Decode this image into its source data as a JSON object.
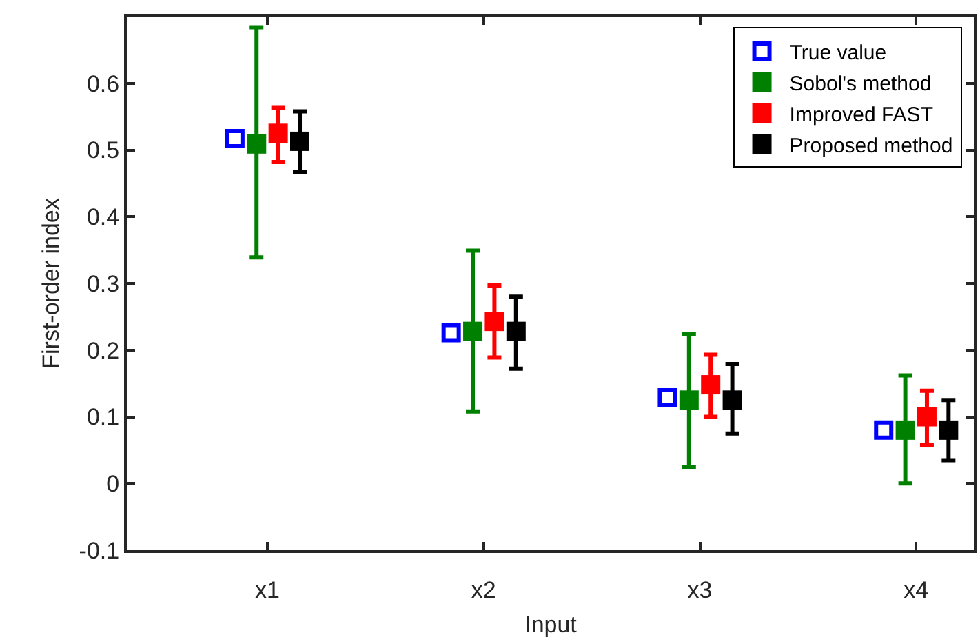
{
  "chart_data": {
    "type": "scatter",
    "xlabel": "Input",
    "ylabel": "First-order index",
    "categories": [
      "x1",
      "x2",
      "x3",
      "x4"
    ],
    "ylim": [
      -0.1,
      0.7
    ],
    "yticks": [
      -0.1,
      0,
      0.1,
      0.2,
      0.3,
      0.4,
      0.5,
      0.6
    ],
    "grid": false,
    "legend": "top right",
    "marker": "square",
    "series": [
      {
        "name": "True value",
        "color": "#0000ff",
        "values": [
          0.517,
          0.226,
          0.129,
          0.08
        ]
      },
      {
        "name": "Sobol's method",
        "color": "#008000",
        "values": [
          0.509,
          0.228,
          0.125,
          0.08
        ],
        "errors": [
          [
            0.339,
            0.684
          ],
          [
            0.108,
            0.349
          ],
          [
            0.025,
            0.224
          ],
          [
            0.0,
            0.162
          ]
        ]
      },
      {
        "name": "Improved FAST",
        "color": "#ff0000",
        "values": [
          0.525,
          0.243,
          0.148,
          0.1
        ],
        "errors": [
          [
            0.482,
            0.563
          ],
          [
            0.189,
            0.297
          ],
          [
            0.1,
            0.193
          ],
          [
            0.058,
            0.139
          ]
        ]
      },
      {
        "name": "Proposed method",
        "color": "#000000",
        "values": [
          0.513,
          0.228,
          0.125,
          0.08
        ],
        "errors": [
          [
            0.467,
            0.558
          ],
          [
            0.172,
            0.28
          ],
          [
            0.075,
            0.179
          ],
          [
            0.035,
            0.125
          ]
        ]
      }
    ]
  }
}
